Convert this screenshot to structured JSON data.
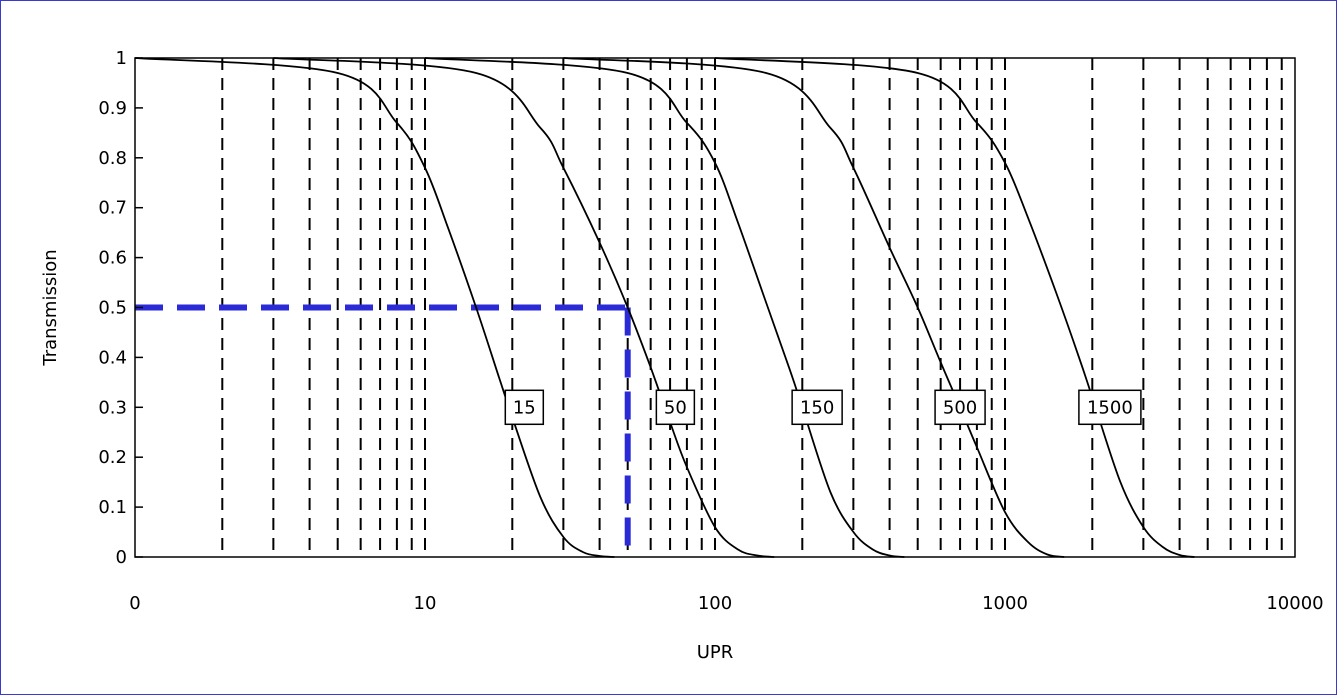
{
  "chart_data": {
    "type": "line",
    "x_scale": "log",
    "xlabel": "UPR",
    "ylabel": "Transmission",
    "xlim": [
      1,
      10000
    ],
    "ylim": [
      0,
      1
    ],
    "x_tick_labels": [
      "0",
      "10",
      "100",
      "1000",
      "10000"
    ],
    "y_tick_labels": [
      "0",
      "0.1",
      "0.2",
      "0.3",
      "0.4",
      "0.5",
      "0.6",
      "0.7",
      "0.8",
      "0.9",
      "1"
    ],
    "grid": "vertical-dashed",
    "series": [
      {
        "name": "15",
        "x": [
          1,
          5,
          8,
          10,
          12,
          15,
          18,
          20,
          25,
          30,
          35,
          40,
          45
        ],
        "y": [
          1.0,
          0.97,
          0.87,
          0.78,
          0.66,
          0.5,
          0.36,
          0.28,
          0.12,
          0.04,
          0.01,
          0.002,
          0.0
        ]
      },
      {
        "name": "50",
        "x": [
          3,
          15,
          25,
          30,
          40,
          50,
          60,
          70,
          80,
          100,
          120,
          140,
          160
        ],
        "y": [
          1.0,
          0.97,
          0.86,
          0.78,
          0.63,
          0.5,
          0.38,
          0.27,
          0.18,
          0.06,
          0.015,
          0.003,
          0.0
        ]
      },
      {
        "name": "150",
        "x": [
          10,
          50,
          80,
          100,
          120,
          150,
          180,
          200,
          250,
          300,
          350,
          400,
          450
        ],
        "y": [
          1.0,
          0.97,
          0.87,
          0.79,
          0.67,
          0.51,
          0.38,
          0.3,
          0.13,
          0.05,
          0.015,
          0.003,
          0.0
        ]
      },
      {
        "name": "500",
        "x": [
          30,
          150,
          250,
          300,
          400,
          500,
          600,
          700,
          800,
          1000,
          1200,
          1400,
          1600
        ],
        "y": [
          1.0,
          0.97,
          0.86,
          0.78,
          0.62,
          0.5,
          0.39,
          0.3,
          0.22,
          0.09,
          0.03,
          0.005,
          0.0
        ]
      },
      {
        "name": "1500",
        "x": [
          100,
          500,
          800,
          1000,
          1200,
          1500,
          1800,
          2000,
          2500,
          3000,
          3500,
          4000,
          4500
        ],
        "y": [
          1.0,
          0.97,
          0.87,
          0.79,
          0.68,
          0.53,
          0.4,
          0.32,
          0.15,
          0.06,
          0.02,
          0.004,
          0.0
        ]
      }
    ],
    "annotation_line": {
      "x": 50,
      "y": 0.5,
      "color": "#2a2ad6"
    },
    "gridline_x": [
      2,
      3,
      4,
      5,
      6,
      7,
      8,
      9,
      10,
      20,
      30,
      40,
      50,
      60,
      70,
      80,
      90,
      100,
      200,
      300,
      400,
      500,
      600,
      700,
      800,
      900,
      1000,
      2000,
      3000,
      4000,
      5000,
      6000,
      7000,
      8000,
      9000
    ],
    "colors": {
      "curve": "#000000",
      "grid": "#000000",
      "annotation": "#2a2ad6",
      "frame_border": "#3a3ad0"
    }
  }
}
